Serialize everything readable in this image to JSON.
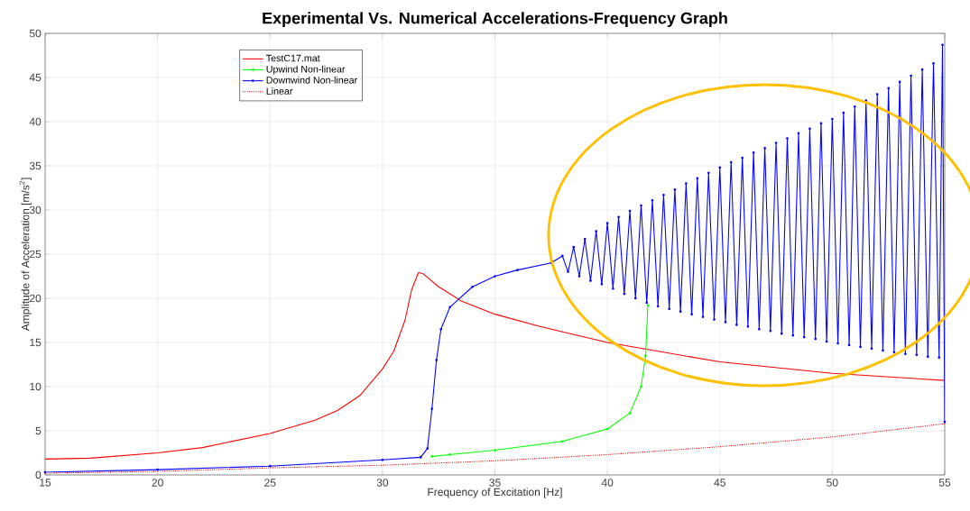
{
  "chart_data": {
    "type": "line",
    "title": "Experimental Vs. Numerical Accelerations-Frequency Graph",
    "xlabel": "Frequency of Excitation [Hz]",
    "ylabel": "Amplitude of Acceleration [m/s$^{2}$]",
    "xlim": [
      15,
      55
    ],
    "xticks": [
      15,
      20,
      25,
      30,
      35,
      40,
      45,
      50,
      55
    ],
    "ylim": [
      0,
      50
    ],
    "yticks": [
      0,
      5,
      10,
      15,
      20,
      25,
      30,
      35,
      40,
      45,
      50
    ],
    "grid": true,
    "legend": "top left",
    "series": [
      {
        "name": "TestC17.mat",
        "color": "#ff0000",
        "line_style": "solid",
        "marker": "none",
        "x": [
          15,
          17,
          20,
          22,
          25,
          27,
          28,
          29,
          30,
          30.5,
          31,
          31.3,
          31.6,
          31.8,
          32.5,
          33.5,
          35,
          37,
          40,
          45,
          50,
          55
        ],
        "values": [
          1.8,
          1.9,
          2.5,
          3.1,
          4.7,
          6.2,
          7.3,
          9.0,
          12,
          14,
          17.5,
          21,
          22.9,
          22.8,
          21.3,
          19.7,
          18.2,
          16.8,
          15.0,
          12.8,
          11.5,
          10.7
        ]
      },
      {
        "name": "Upwind Non-linear",
        "color": "#00ff00",
        "line_style": "solid",
        "marker": "circle",
        "x": [
          32.2,
          33,
          35,
          38,
          40,
          41,
          41.5,
          41.7,
          41.8
        ],
        "values": [
          2.1,
          2.3,
          2.8,
          3.8,
          5.2,
          7,
          10,
          13.5,
          19.2
        ]
      },
      {
        "name": "Downwind Non-linear",
        "color": "#0000ff",
        "line_style": "solid",
        "marker": "circle",
        "x": [
          15,
          20,
          25,
          30,
          31.7,
          32,
          32.2,
          32.4,
          32.6,
          33,
          34,
          35,
          36,
          37.5,
          38,
          38.25,
          38.5,
          38.75,
          39,
          39.25,
          39.5,
          39.75,
          40,
          40.25,
          40.5,
          40.75,
          41,
          41.25,
          41.5,
          41.75,
          42,
          42.25,
          42.5,
          42.75,
          43,
          43.25,
          43.5,
          43.75,
          44,
          44.25,
          44.5,
          44.75,
          45,
          45.25,
          45.5,
          45.75,
          46,
          46.25,
          46.5,
          46.75,
          47,
          47.25,
          47.5,
          47.75,
          48,
          48.25,
          48.5,
          48.75,
          49,
          49.25,
          49.5,
          49.75,
          50,
          50.25,
          50.5,
          50.75,
          51,
          51.25,
          51.5,
          51.75,
          52,
          52.25,
          52.5,
          52.75,
          53,
          53.25,
          53.5,
          53.75,
          54,
          54.25,
          54.5,
          54.75,
          54.9,
          55
        ],
        "values": [
          0.3,
          0.6,
          1.0,
          1.7,
          2.0,
          3,
          7.5,
          13,
          16.5,
          19,
          21.3,
          22.5,
          23.2,
          24,
          24.8,
          23.0,
          25.8,
          22.5,
          26.7,
          22.0,
          27.6,
          21.6,
          28.5,
          21.1,
          29.2,
          20.5,
          29.9,
          20.0,
          30.5,
          19.5,
          31.1,
          19.1,
          31.7,
          18.8,
          32.3,
          18.5,
          33.0,
          18.2,
          33.6,
          17.9,
          34.2,
          17.6,
          34.8,
          17.3,
          35.4,
          17.0,
          35.9,
          16.8,
          36.5,
          16.5,
          37.0,
          16.3,
          37.6,
          16.0,
          38.1,
          15.8,
          38.7,
          15.6,
          39.2,
          15.4,
          39.8,
          15.1,
          40.3,
          14.9,
          41.0,
          14.7,
          41.7,
          14.5,
          42.4,
          14.3,
          43.1,
          14.1,
          43.8,
          13.9,
          44.5,
          13.7,
          45.2,
          13.6,
          45.9,
          13.4,
          46.6,
          13.3,
          48.7,
          6
        ]
      },
      {
        "name": "Linear",
        "color": "#ff0000",
        "line_style": "dotted",
        "marker": "none",
        "x": [
          15,
          20,
          25,
          30,
          35,
          40,
          45,
          50,
          55
        ],
        "values": [
          0.2,
          0.4,
          0.8,
          1.1,
          1.6,
          2.3,
          3.2,
          4.3,
          5.8
        ]
      }
    ]
  }
}
